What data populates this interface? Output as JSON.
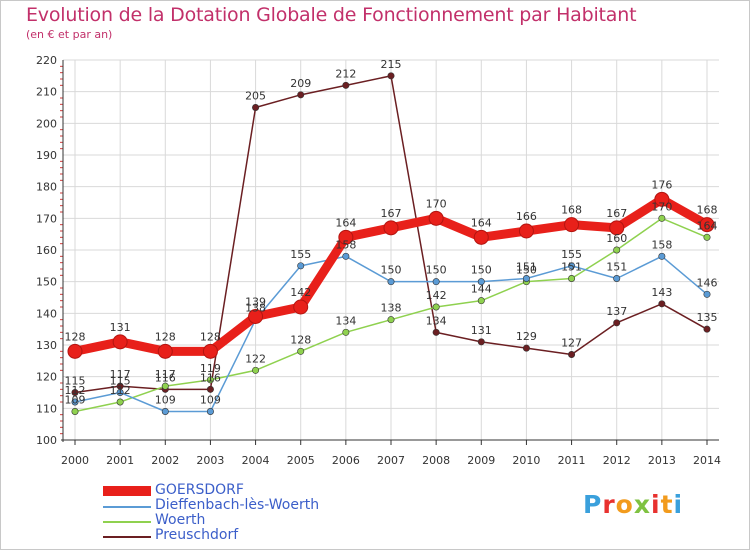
{
  "title": "Evolution de la Dotation Globale de Fonctionnement par Habitant",
  "subtitle": "(en € et par an)",
  "logo": {
    "text": "Proxiti",
    "colors": [
      "#3aa0dc",
      "#f29b1d",
      "#7fc241",
      "#e8312f"
    ]
  },
  "chart_data": {
    "type": "line",
    "title": "Evolution de la Dotation Globale de Fonctionnement par Habitant",
    "subtitle": "(en € et par an)",
    "xlabel": "",
    "ylabel": "",
    "x": [
      "2000",
      "2001",
      "2002",
      "2003",
      "2004",
      "2005",
      "2006",
      "2007",
      "2008",
      "2009",
      "2010",
      "2011",
      "2012",
      "2013",
      "2014"
    ],
    "ylim": [
      100,
      220
    ],
    "yticks": [
      100,
      110,
      120,
      130,
      140,
      150,
      160,
      170,
      180,
      190,
      200,
      210,
      220
    ],
    "grid": true,
    "legend_position": "bottom-left",
    "series": [
      {
        "name": "GOERSDORF",
        "color": "#e8201a",
        "values": [
          128,
          131,
          128,
          128,
          139,
          142,
          164,
          167,
          170,
          164,
          166,
          168,
          167,
          176,
          168
        ],
        "labels": [
          "128",
          "131",
          "128",
          "128",
          "139",
          "142",
          "164",
          "167",
          "170",
          "164",
          "166",
          "168",
          "167",
          "176",
          "168"
        ]
      },
      {
        "name": "Dieffenbach-lès-Woerth",
        "color": "#5b9bd5",
        "values": [
          112,
          115,
          109,
          109,
          138,
          155,
          158,
          150,
          150,
          150,
          151,
          155,
          151,
          158,
          146
        ],
        "labels": [
          "112",
          "115",
          "109",
          "109",
          "138",
          "155",
          "158",
          "150",
          "150",
          "150",
          "151",
          "155",
          "151",
          "158",
          "146"
        ]
      },
      {
        "name": "Woerth",
        "color": "#8fd14f",
        "values": [
          109,
          112,
          117,
          119,
          122,
          128,
          134,
          138,
          142,
          144,
          150,
          151,
          160,
          170,
          164
        ],
        "labels": [
          "109",
          "112",
          "117",
          "119",
          "122",
          "128",
          "134",
          "138",
          "142",
          "144",
          "150",
          "151",
          "160",
          "170",
          "164"
        ]
      },
      {
        "name": "Preuschdorf",
        "color": "#6b1f22",
        "values": [
          115,
          117,
          116,
          116,
          205,
          209,
          212,
          215,
          134,
          131,
          129,
          127,
          137,
          143,
          135
        ],
        "labels": [
          "115",
          "117",
          "116",
          "116",
          "205",
          "209",
          "212",
          "215",
          "134",
          "131",
          "129",
          "127",
          "137",
          "143",
          "135"
        ]
      }
    ]
  }
}
